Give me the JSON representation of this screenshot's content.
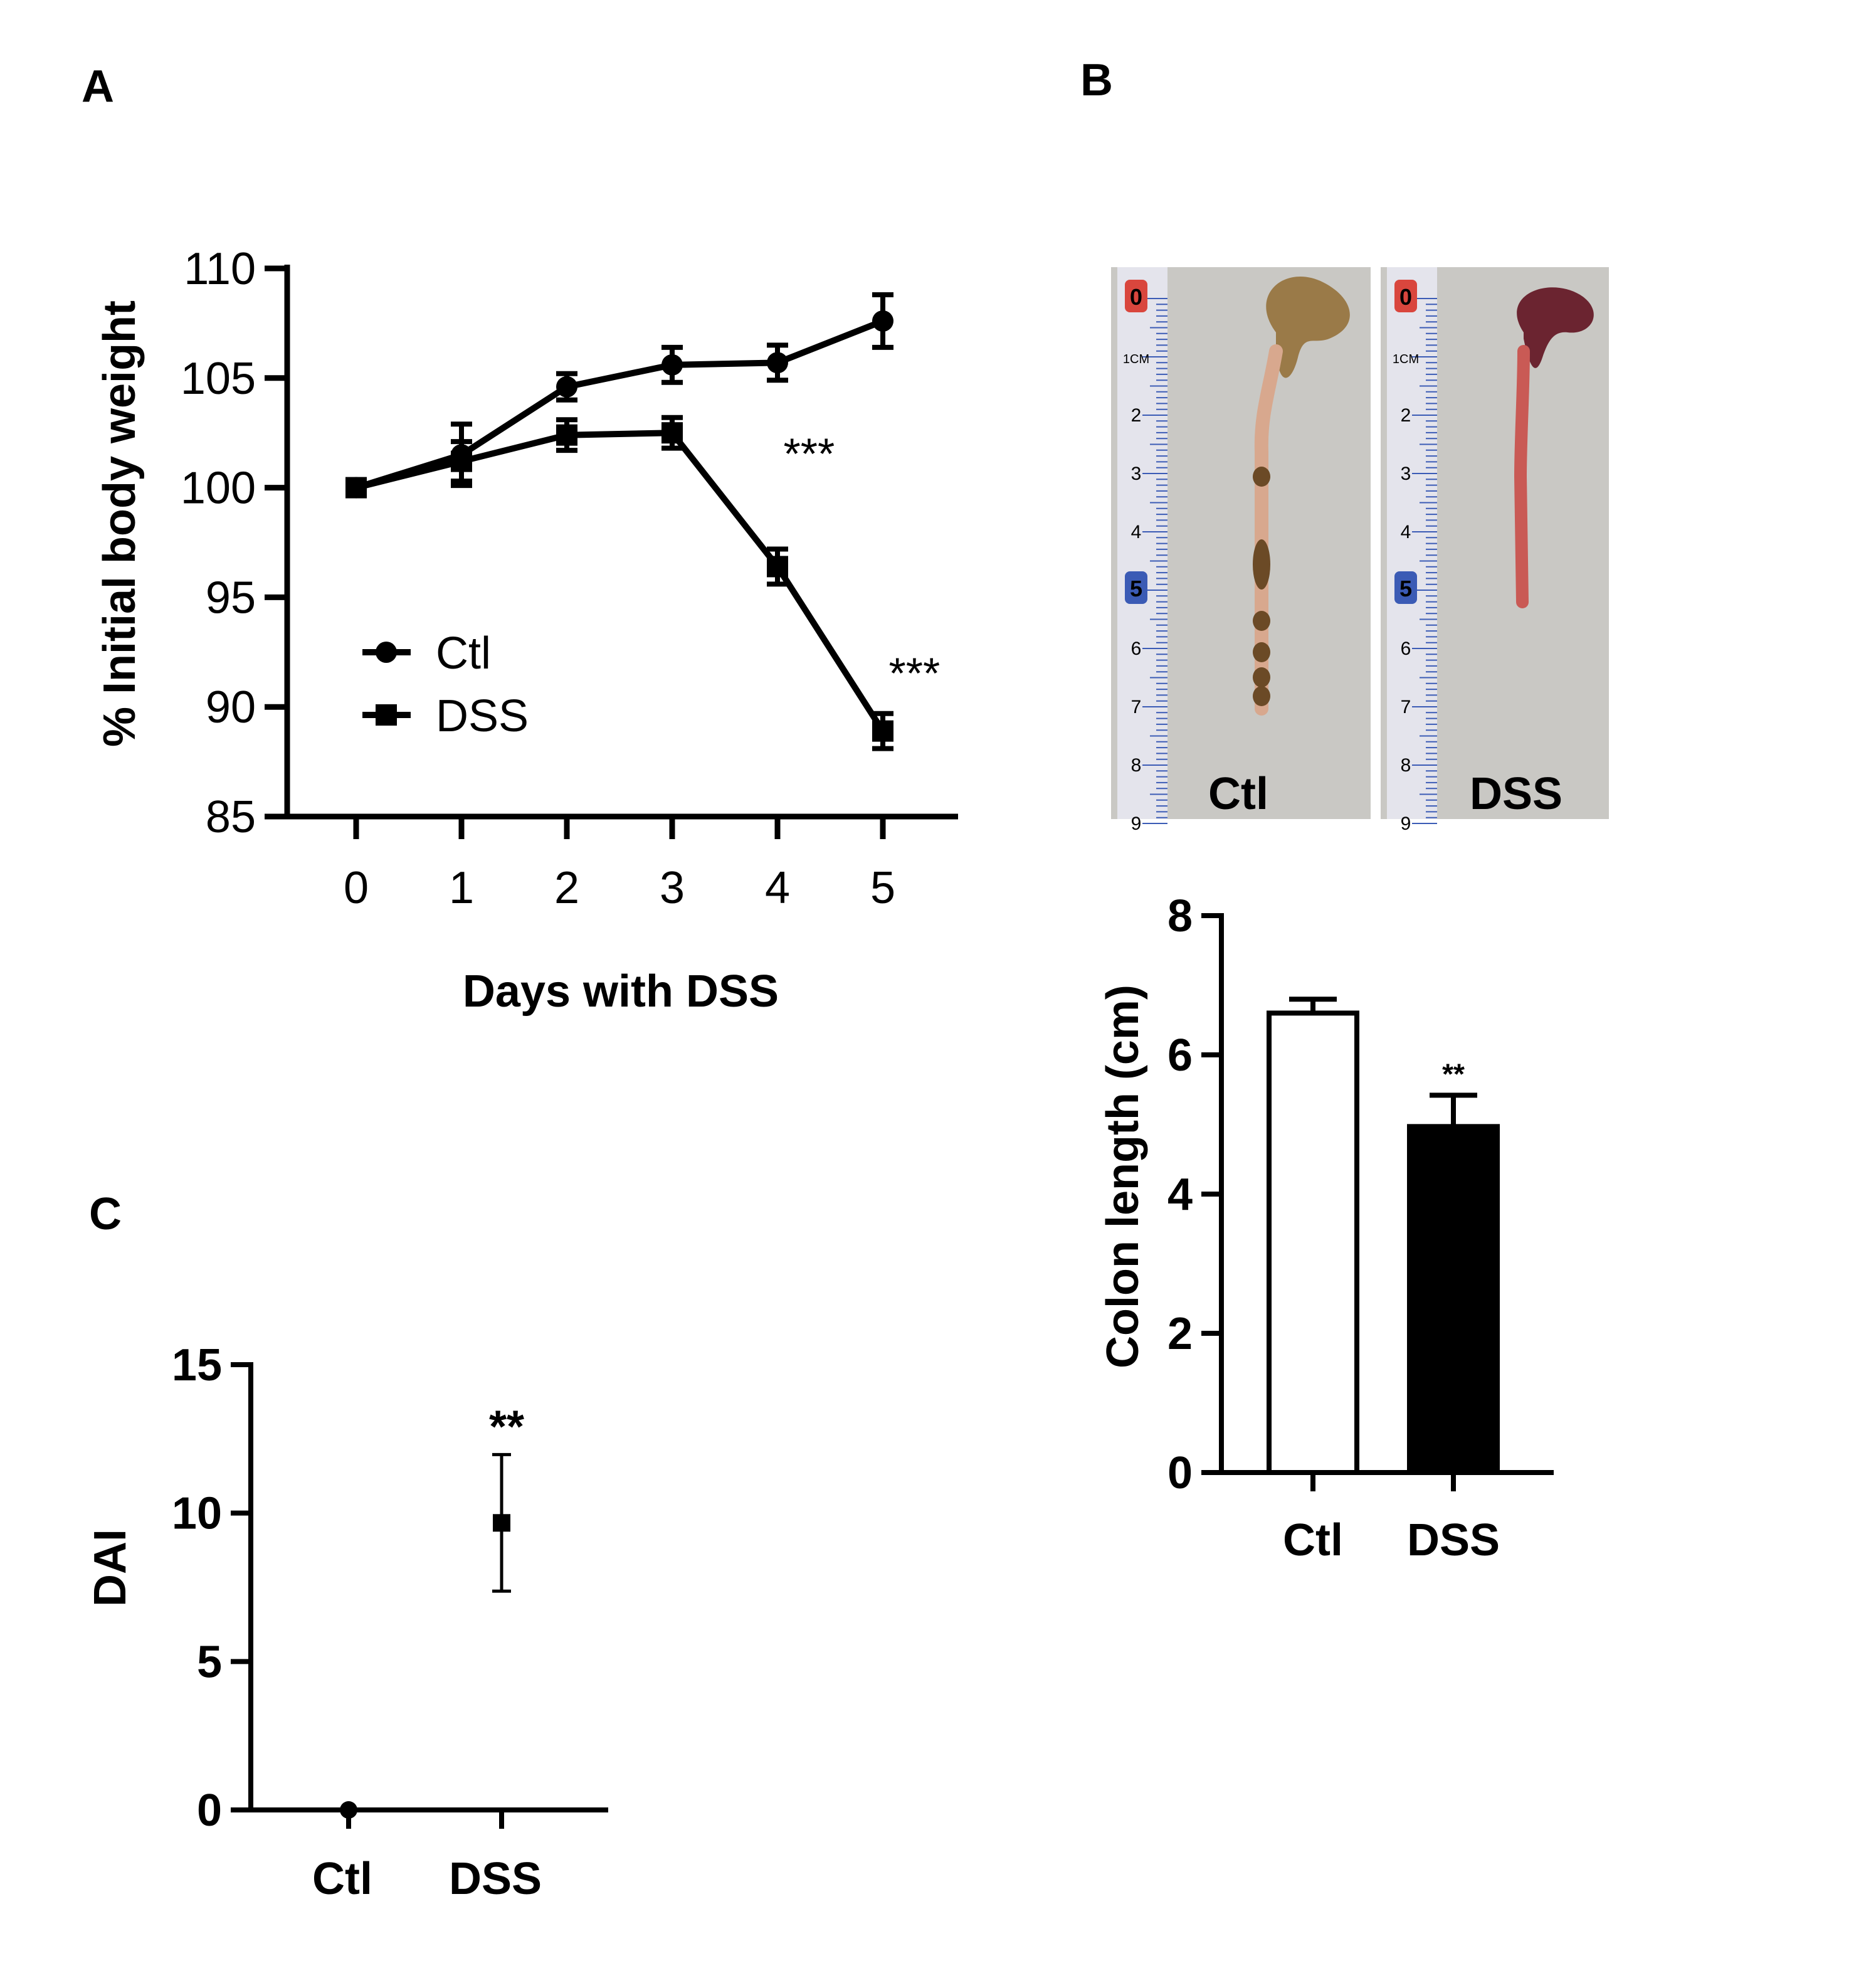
{
  "panels": {
    "A": {
      "letter": "A"
    },
    "B": {
      "letter": "B"
    },
    "C": {
      "letter": "C"
    }
  },
  "photo": {
    "labels": [
      "Ctl",
      "DSS"
    ],
    "ruler_numbers": [
      "0",
      "1CM",
      "2",
      "3",
      "4",
      "5",
      "6",
      "7",
      "8",
      "9"
    ]
  },
  "colors": {
    "ink": "#000000",
    "photo_background": "#c9c8c4",
    "ruler_red": "#d9463d",
    "ruler_blue": "#3b5bb5",
    "colon_ctl": "#9a7a48",
    "colon_dss": "#6b2430"
  },
  "chart_data": [
    {
      "panel": "A",
      "type": "line",
      "xlabel": "Days with DSS",
      "ylabel": "% Initial body weight",
      "x": [
        0,
        1,
        2,
        3,
        4,
        5
      ],
      "xlim": [
        -0.5,
        5.7
      ],
      "ylim": [
        85,
        110
      ],
      "yticks": [
        85,
        90,
        95,
        100,
        105,
        110
      ],
      "legend_position": "lower-left",
      "series": [
        {
          "name": "Ctl",
          "marker": "circle",
          "values": [
            100,
            101.5,
            104.6,
            105.6,
            105.7,
            107.6
          ],
          "errors": [
            0.2,
            1.4,
            0.6,
            0.8,
            0.8,
            1.2
          ]
        },
        {
          "name": "DSS",
          "marker": "square",
          "values": [
            100,
            101.2,
            102.4,
            102.5,
            96.4,
            88.9
          ],
          "errors": [
            0.2,
            0.9,
            0.7,
            0.7,
            0.8,
            0.8
          ]
        }
      ],
      "annotations": [
        {
          "text": "***",
          "x": 4.3,
          "y": 102.0
        },
        {
          "text": "***",
          "x": 5.3,
          "y": 92.0
        }
      ]
    },
    {
      "panel": "B",
      "type": "bar",
      "xlabel": "",
      "ylabel": "Colon length (cm)",
      "categories": [
        "Ctl",
        "DSS"
      ],
      "values": [
        6.6,
        4.97
      ],
      "errors": [
        0.2,
        0.45
      ],
      "fills": [
        "#ffffff",
        "#000000"
      ],
      "ylim": [
        0,
        8
      ],
      "yticks": [
        0,
        2,
        4,
        6,
        8
      ],
      "annotations": [
        {
          "text": "**",
          "category": 1
        }
      ]
    },
    {
      "panel": "C",
      "type": "scatter",
      "xlabel": "",
      "ylabel": "DAI",
      "categories": [
        "Ctl",
        "DSS"
      ],
      "values": [
        0,
        9.67
      ],
      "errors": [
        0,
        2.3
      ],
      "markers": [
        "circle",
        "square"
      ],
      "ylim": [
        0,
        15
      ],
      "yticks": [
        0,
        5,
        10,
        15
      ],
      "annotations": [
        {
          "text": "**",
          "category": 1
        }
      ]
    }
  ]
}
